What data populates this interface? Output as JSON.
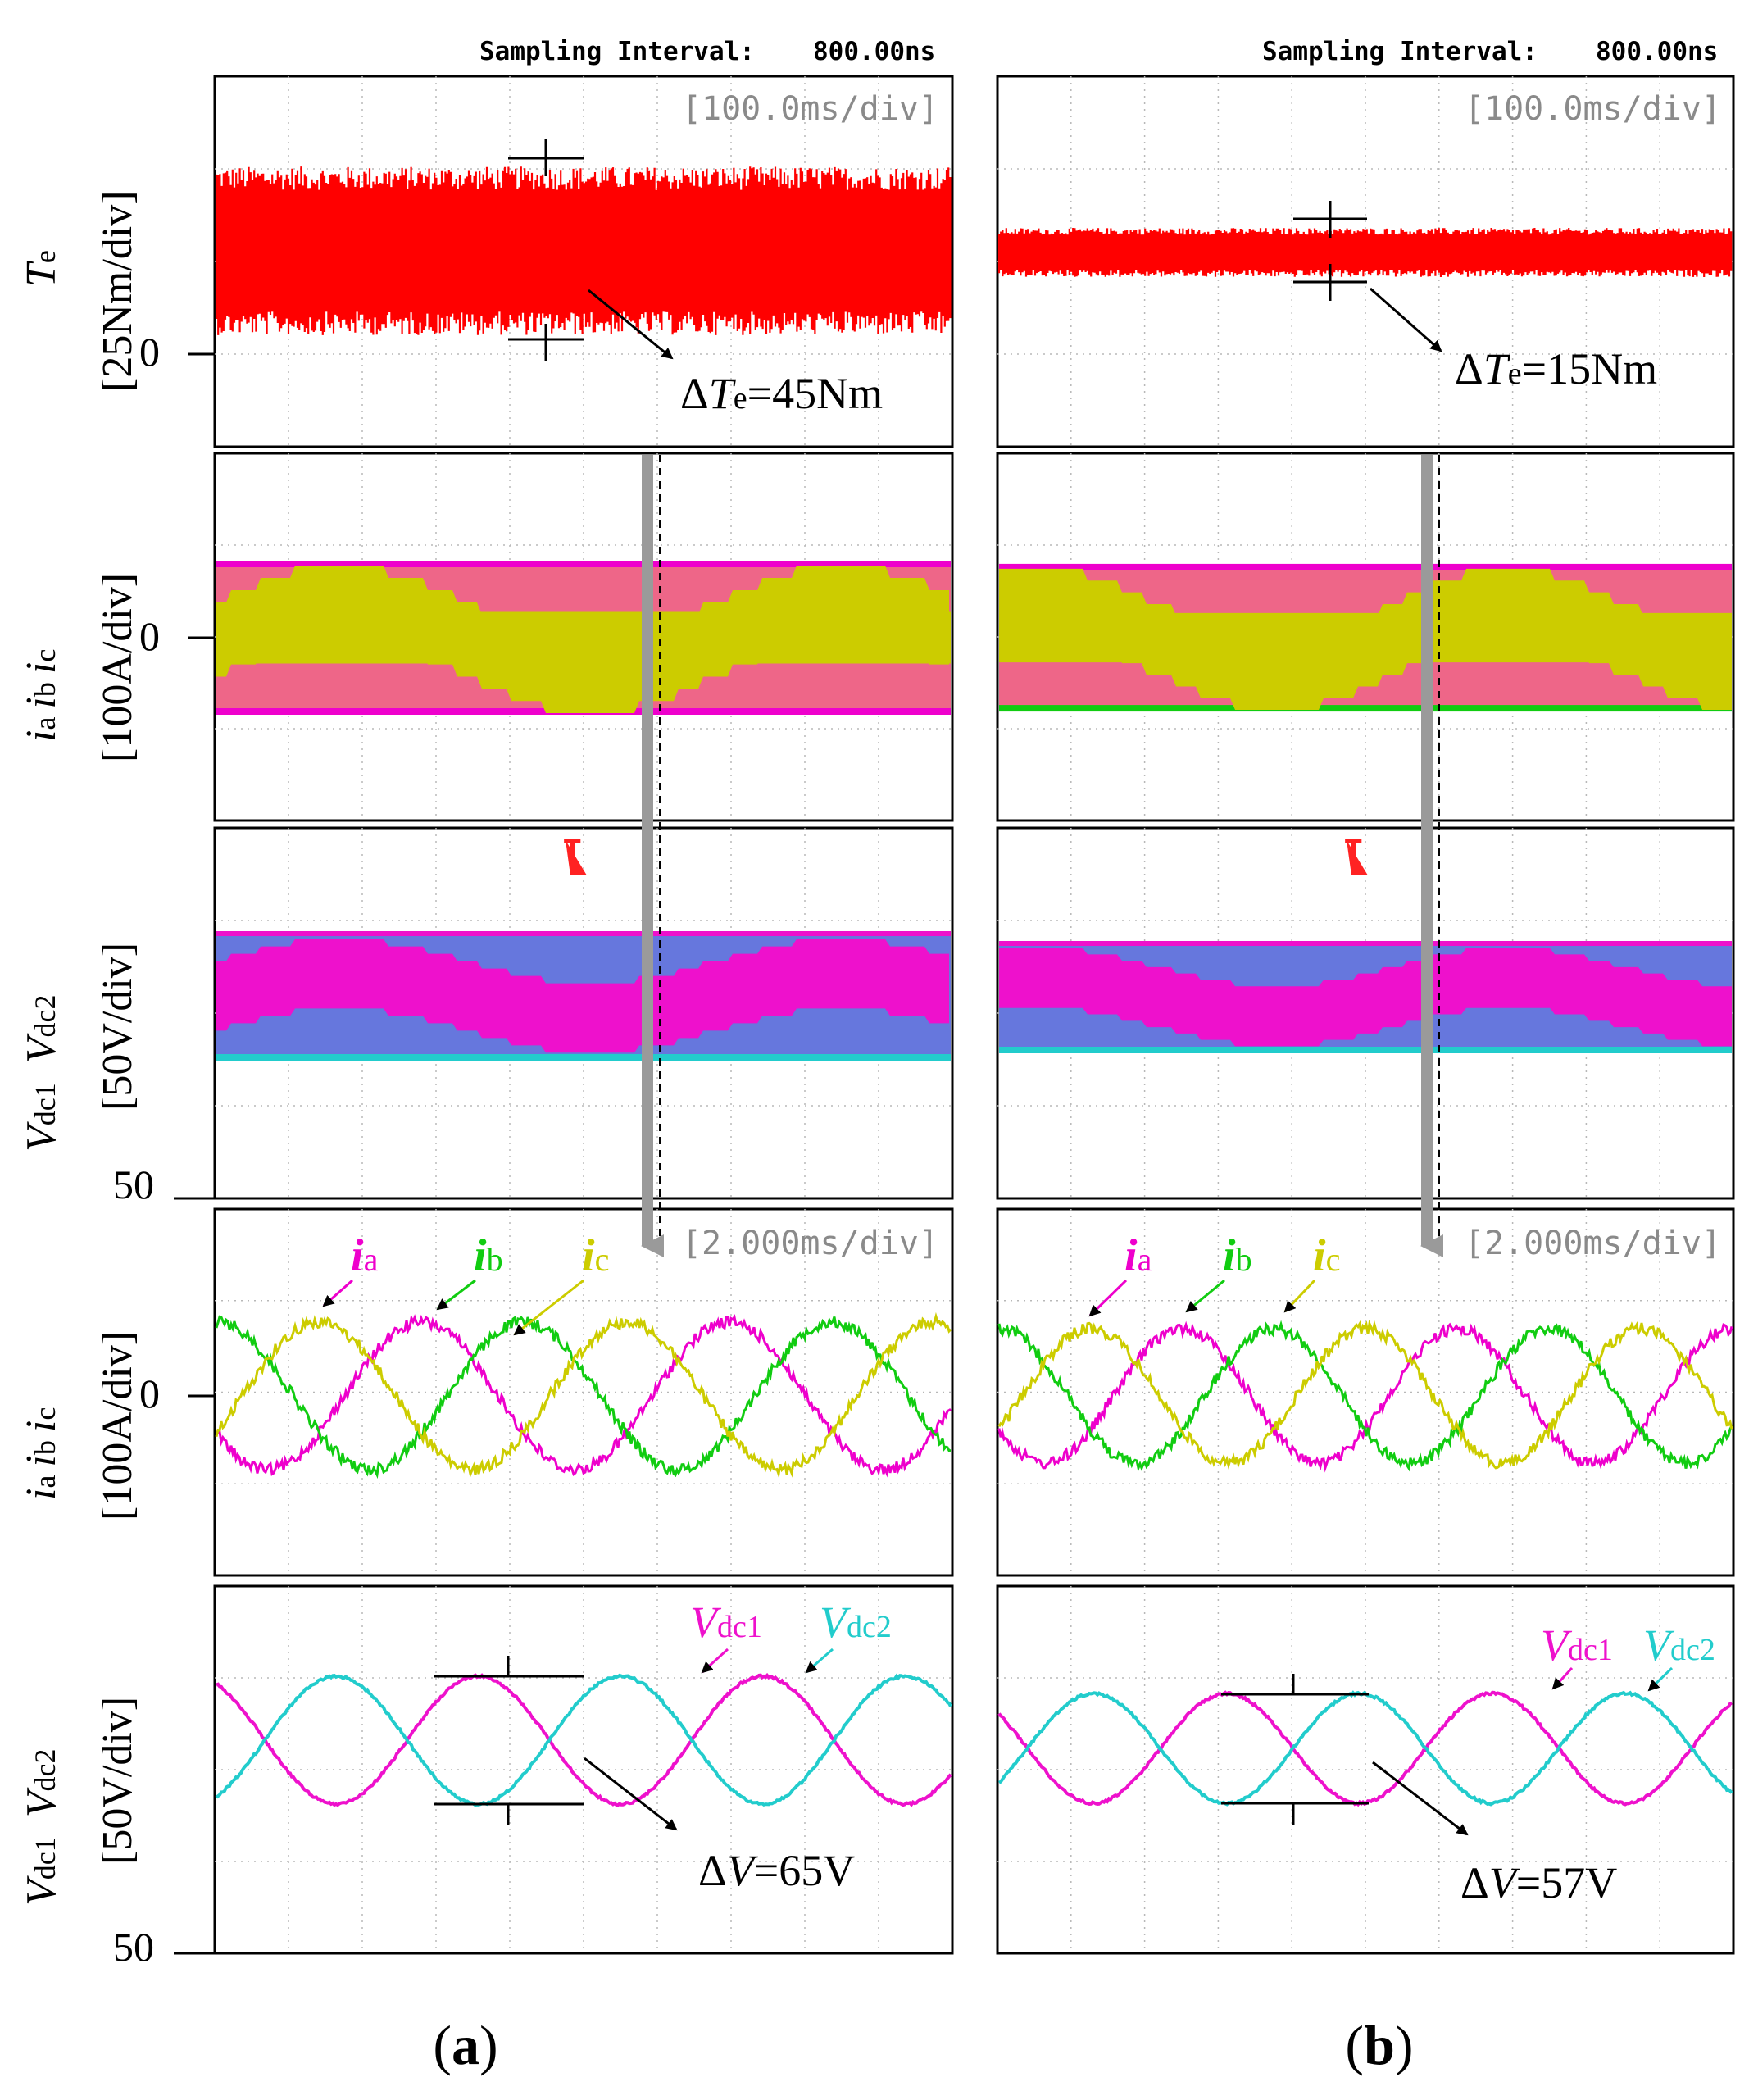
{
  "figure": {
    "columns": [
      {
        "id": "a",
        "sampling_label": "Sampling Interval:",
        "sampling_value": "800.00ns",
        "caption": "a",
        "torque_ripple": {
          "prefix": "Δ",
          "sym": "T",
          "sub": "e",
          "value": "=45Nm"
        },
        "voltage_ripple": {
          "prefix": "Δ",
          "sym": "V",
          "value": "=65V"
        }
      },
      {
        "id": "b",
        "sampling_label": "Sampling Interval:",
        "sampling_value": "800.00ns",
        "caption": "b",
        "torque_ripple": {
          "prefix": "Δ",
          "sym": "T",
          "sub": "e",
          "value": "=15Nm"
        },
        "voltage_ripple": {
          "prefix": "Δ",
          "sym": "V",
          "value": "=57V"
        }
      }
    ],
    "timebase_slow": "[100.0ms/div]",
    "timebase_fast": "[2.000ms/div]",
    "ylabels": {
      "torque": {
        "sym": "T",
        "sub": "e",
        "unit": "[25Nm/div]",
        "zero": "0"
      },
      "current": {
        "syms": [
          "i",
          "i",
          "i"
        ],
        "subs": [
          "a",
          "b",
          "c"
        ],
        "unit": "[100A/div]",
        "zero": "0"
      },
      "voltage": {
        "syms": [
          "V",
          "V"
        ],
        "subs": [
          "dc1",
          "dc2"
        ],
        "unit": "[50V/div]",
        "bottom": "50"
      }
    },
    "trace_labels": {
      "ia": {
        "sym": "i",
        "sub": "a"
      },
      "ib": {
        "sym": "i",
        "sub": "b"
      },
      "ic": {
        "sym": "i",
        "sub": "c"
      },
      "vdc1": {
        "sym": "V",
        "sub": "dc1"
      },
      "vdc2": {
        "sym": "V",
        "sub": "dc2"
      }
    },
    "trigger_marker": "T",
    "caption_paren_open": "(",
    "caption_paren_close": ")"
  },
  "colors": {
    "torque": "#ff0000",
    "ia": "#ee00cc",
    "ib": "#11cc11",
    "ic": "#cccc00",
    "vdc1": "#ee11cc",
    "vdc2": "#22cccc",
    "timebase": "#999999",
    "band_mix": "#ee6688",
    "vband_mix": "#6677dd"
  },
  "chart_data": [
    {
      "id": "a-torque",
      "type": "line",
      "title": "",
      "ylabel": "Te [25Nm/div]",
      "xlabel": "[100.0ms/div]",
      "x_range_ms": [
        0,
        800
      ],
      "y_zero_div": 1,
      "mean_Nm": 40,
      "ripple_Nm": 45
    },
    {
      "id": "a-currents-slow",
      "type": "line",
      "ylabel": "ia ib ic [100A/div]",
      "xlabel": "[100.0ms/div]",
      "series": [
        {
          "name": "ia",
          "amplitude_A": 90
        },
        {
          "name": "ib",
          "amplitude_A": 90
        },
        {
          "name": "ic",
          "amplitude_A": 90
        }
      ]
    },
    {
      "id": "a-voltages-slow",
      "type": "line",
      "ylabel": "Vdc1 Vdc2 [50V/div]",
      "xlabel": "[100.0ms/div]",
      "y_bottom_V": 50,
      "series": [
        {
          "name": "Vdc1"
        },
        {
          "name": "Vdc2"
        }
      ],
      "band_V": [
        0,
        65
      ]
    },
    {
      "id": "a-currents-fast",
      "type": "line",
      "ylabel": "ia ib ic [100A/div]",
      "xlabel": "[2.000ms/div]",
      "x_range_ms": [
        0,
        16
      ],
      "period_ms": 6.7,
      "series": [
        {
          "name": "ia",
          "amplitude_A": 90,
          "phase_deg": 210
        },
        {
          "name": "ib",
          "amplitude_A": 90,
          "phase_deg": 90
        },
        {
          "name": "ic",
          "amplitude_A": 90,
          "phase_deg": 330
        }
      ]
    },
    {
      "id": "a-voltages-fast",
      "type": "line",
      "ylabel": "Vdc1 Vdc2 [50V/div]",
      "xlabel": "[2.000ms/div]",
      "x_range_ms": [
        0,
        16
      ],
      "period_ms": 6.2,
      "y_bottom_V": 50,
      "ripple_V": 65,
      "series": [
        {
          "name": "Vdc1",
          "phase_deg": 90
        },
        {
          "name": "Vdc2",
          "phase_deg": 270
        }
      ]
    },
    {
      "id": "b-torque",
      "type": "line",
      "ylabel": "Te [25Nm/div]",
      "xlabel": "[100.0ms/div]",
      "x_range_ms": [
        0,
        800
      ],
      "mean_Nm": 40,
      "ripple_Nm": 15
    },
    {
      "id": "b-currents-slow",
      "type": "line",
      "ylabel": "ia ib ic [100A/div]",
      "xlabel": "[100.0ms/div]",
      "series": [
        {
          "name": "ia",
          "amplitude_A": 82
        },
        {
          "name": "ib",
          "amplitude_A": 82
        },
        {
          "name": "ic",
          "amplitude_A": 82
        }
      ]
    },
    {
      "id": "b-voltages-slow",
      "type": "line",
      "ylabel": "Vdc1 Vdc2 [50V/div]",
      "xlabel": "[100.0ms/div]",
      "y_bottom_V": 50,
      "series": [
        {
          "name": "Vdc1"
        },
        {
          "name": "Vdc2"
        }
      ],
      "band_V": [
        0,
        57
      ]
    },
    {
      "id": "b-currents-fast",
      "type": "line",
      "ylabel": "ia ib ic [100A/div]",
      "xlabel": "[2.000ms/div]",
      "x_range_ms": [
        0,
        16
      ],
      "period_ms": 6.0,
      "series": [
        {
          "name": "ia",
          "amplitude_A": 82,
          "phase_deg": 210
        },
        {
          "name": "ib",
          "amplitude_A": 82,
          "phase_deg": 90
        },
        {
          "name": "ic",
          "amplitude_A": 82,
          "phase_deg": 330
        }
      ]
    },
    {
      "id": "b-voltages-fast",
      "type": "line",
      "ylabel": "Vdc1 Vdc2 [50V/div]",
      "xlabel": "[2.000ms/div]",
      "x_range_ms": [
        0,
        16
      ],
      "period_ms": 5.8,
      "y_bottom_V": 50,
      "ripple_V": 57,
      "series": [
        {
          "name": "Vdc1",
          "phase_deg": 90
        },
        {
          "name": "Vdc2",
          "phase_deg": 270
        }
      ]
    }
  ]
}
